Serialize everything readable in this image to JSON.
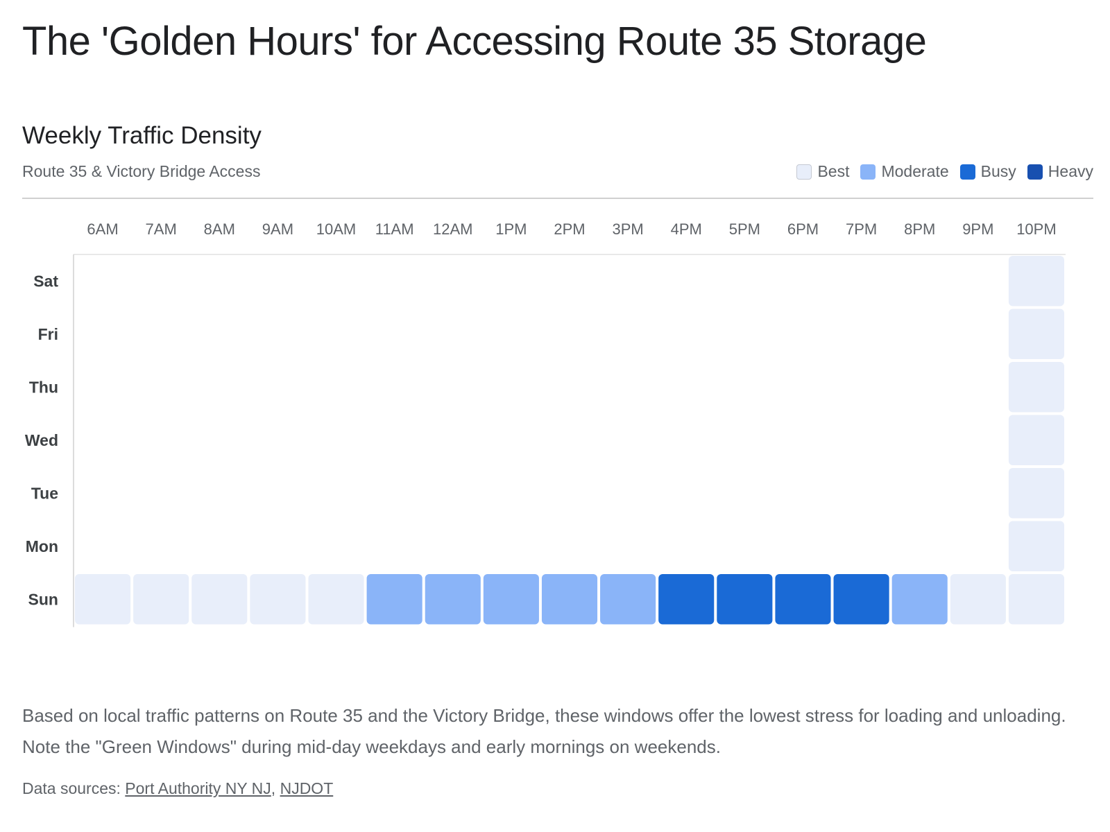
{
  "page_title": "The 'Golden Hours' for Accessing Route 35 Storage",
  "chart_data": {
    "type": "heatmap",
    "title": "Weekly Traffic Density",
    "subtitle": "Route 35 & Victory Bridge Access",
    "legend_position": "top-right",
    "x_categories": [
      "6AM",
      "7AM",
      "8AM",
      "9AM",
      "10AM",
      "11AM",
      "12AM",
      "1PM",
      "2PM",
      "3PM",
      "4PM",
      "5PM",
      "6PM",
      "7PM",
      "8PM",
      "9PM",
      "10PM"
    ],
    "y_categories": [
      "Sat",
      "Fri",
      "Thu",
      "Wed",
      "Tue",
      "Mon",
      "Sun"
    ],
    "levels": [
      {
        "name": "Best",
        "color": "#e8eefa"
      },
      {
        "name": "Moderate",
        "color": "#8ab4f8"
      },
      {
        "name": "Busy",
        "color": "#1a6ad6"
      },
      {
        "name": "Heavy",
        "color": "#1850b0"
      }
    ],
    "cells": {
      "Sat": [
        null,
        null,
        null,
        null,
        null,
        null,
        null,
        null,
        null,
        null,
        null,
        null,
        null,
        null,
        null,
        null,
        "Best"
      ],
      "Fri": [
        null,
        null,
        null,
        null,
        null,
        null,
        null,
        null,
        null,
        null,
        null,
        null,
        null,
        null,
        null,
        null,
        "Best"
      ],
      "Thu": [
        null,
        null,
        null,
        null,
        null,
        null,
        null,
        null,
        null,
        null,
        null,
        null,
        null,
        null,
        null,
        null,
        "Best"
      ],
      "Wed": [
        null,
        null,
        null,
        null,
        null,
        null,
        null,
        null,
        null,
        null,
        null,
        null,
        null,
        null,
        null,
        null,
        "Best"
      ],
      "Tue": [
        null,
        null,
        null,
        null,
        null,
        null,
        null,
        null,
        null,
        null,
        null,
        null,
        null,
        null,
        null,
        null,
        "Best"
      ],
      "Mon": [
        null,
        null,
        null,
        null,
        null,
        null,
        null,
        null,
        null,
        null,
        null,
        null,
        null,
        null,
        null,
        null,
        "Best"
      ],
      "Sun": [
        "Best",
        "Best",
        "Best",
        "Best",
        "Best",
        "Moderate",
        "Moderate",
        "Moderate",
        "Moderate",
        "Moderate",
        "Busy",
        "Busy",
        "Busy",
        "Busy",
        "Moderate",
        "Best",
        "Best"
      ]
    }
  },
  "description": "Based on local traffic patterns on Route 35 and the Victory Bridge, these windows offer the lowest stress for loading and unloading. Note the \"Green Windows\" during mid-day weekdays and early mornings on weekends.",
  "sources": {
    "prefix": "Data sources: ",
    "links": [
      "Port Authority NY NJ",
      "NJDOT"
    ],
    "separator": ", "
  }
}
